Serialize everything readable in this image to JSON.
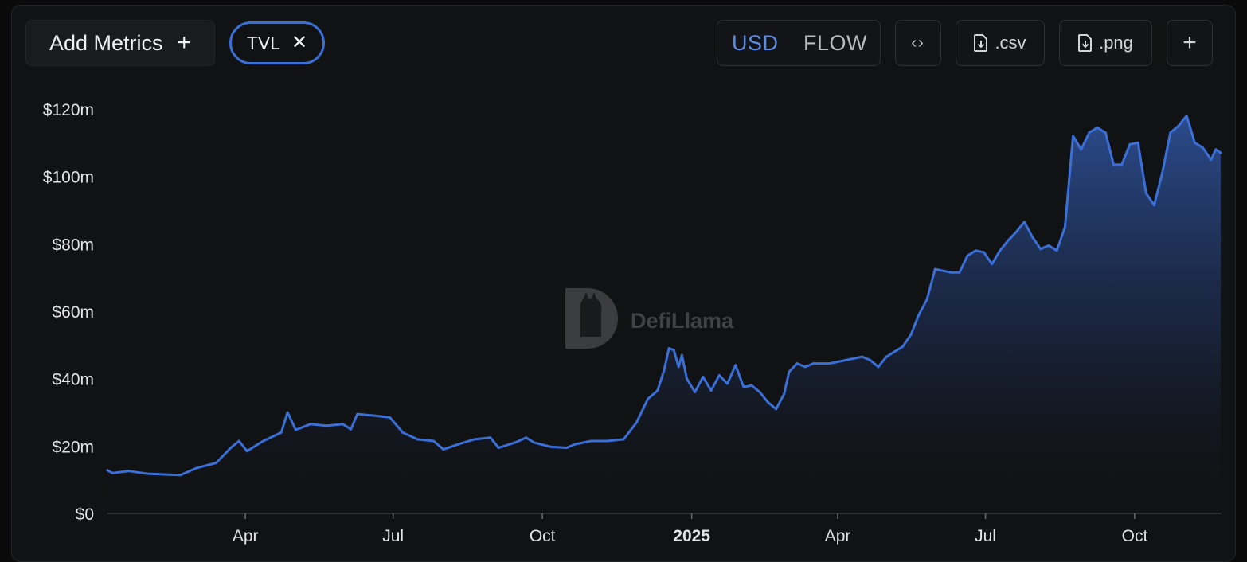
{
  "toolbar": {
    "add_metrics_label": "Add Metrics",
    "add_icon": "plus-icon",
    "tvl_chip_label": "TVL",
    "close_icon": "close-icon",
    "usd_label": "USD",
    "flow_label": "FLOW",
    "embed_icon": "code-brackets-icon",
    "csv_label": ".csv",
    "png_label": ".png",
    "download_icon": "file-download-icon",
    "more_icon": "plus-icon"
  },
  "watermark": {
    "text": "DefiLlama",
    "logo": "llama-logo"
  },
  "colors": {
    "line": "#3b6fd8",
    "accent": "#5b8de8",
    "background": "#111214"
  },
  "chart_data": {
    "type": "area",
    "currency": "USD",
    "y_ticks": [
      "$0",
      "$20m",
      "$40m",
      "$60m",
      "$80m",
      "$100m",
      "$120m"
    ],
    "ylim": [
      0,
      120
    ],
    "y_unit": "$m",
    "xlim": [
      "2024-01-07",
      "2025-11-23"
    ],
    "x_ticks": [
      {
        "label": "Apr",
        "date": "2024-04-01",
        "bold": false
      },
      {
        "label": "Jul",
        "date": "2024-07-01",
        "bold": false
      },
      {
        "label": "Oct",
        "date": "2024-10-01",
        "bold": false
      },
      {
        "label": "2025",
        "date": "2025-01-01",
        "bold": true
      },
      {
        "label": "Apr",
        "date": "2025-04-01",
        "bold": false
      },
      {
        "label": "Jul",
        "date": "2025-07-01",
        "bold": false
      },
      {
        "label": "Oct",
        "date": "2025-10-01",
        "bold": false
      }
    ],
    "series": [
      {
        "name": "TVL",
        "points": [
          [
            "2024-01-07",
            12.8
          ],
          [
            "2024-01-10",
            12.0
          ],
          [
            "2024-01-20",
            12.6
          ],
          [
            "2024-01-31",
            11.8
          ],
          [
            "2024-02-14",
            11.5
          ],
          [
            "2024-02-21",
            11.4
          ],
          [
            "2024-03-02",
            13.5
          ],
          [
            "2024-03-14",
            15.0
          ],
          [
            "2024-03-23",
            19.5
          ],
          [
            "2024-03-28",
            21.5
          ],
          [
            "2024-04-02",
            18.5
          ],
          [
            "2024-04-12",
            21.5
          ],
          [
            "2024-04-23",
            24.0
          ],
          [
            "2024-04-27",
            30.0
          ],
          [
            "2024-05-02",
            24.8
          ],
          [
            "2024-05-11",
            26.5
          ],
          [
            "2024-05-21",
            26.0
          ],
          [
            "2024-05-31",
            26.5
          ],
          [
            "2024-06-05",
            25.0
          ],
          [
            "2024-06-09",
            29.5
          ],
          [
            "2024-06-20",
            29.0
          ],
          [
            "2024-06-29",
            28.5
          ],
          [
            "2024-07-07",
            24.0
          ],
          [
            "2024-07-16",
            22.0
          ],
          [
            "2024-07-26",
            21.5
          ],
          [
            "2024-08-01",
            19.0
          ],
          [
            "2024-08-10",
            20.5
          ],
          [
            "2024-08-20",
            22.0
          ],
          [
            "2024-08-30",
            22.5
          ],
          [
            "2024-09-04",
            19.5
          ],
          [
            "2024-09-14",
            21.0
          ],
          [
            "2024-09-21",
            22.5
          ],
          [
            "2024-09-26",
            21.0
          ],
          [
            "2024-10-06",
            19.8
          ],
          [
            "2024-10-16",
            19.5
          ],
          [
            "2024-10-21",
            20.5
          ],
          [
            "2024-10-31",
            21.5
          ],
          [
            "2024-11-10",
            21.5
          ],
          [
            "2024-11-20",
            22.0
          ],
          [
            "2024-11-28",
            27.0
          ],
          [
            "2024-12-05",
            34.0
          ],
          [
            "2024-12-11",
            36.5
          ],
          [
            "2024-12-15",
            42.5
          ],
          [
            "2024-12-18",
            49.0
          ],
          [
            "2024-12-21",
            48.5
          ],
          [
            "2024-12-24",
            43.5
          ],
          [
            "2024-12-26",
            47.0
          ],
          [
            "2024-12-29",
            40.0
          ],
          [
            "2025-01-03",
            36.0
          ],
          [
            "2025-01-08",
            40.5
          ],
          [
            "2025-01-13",
            36.5
          ],
          [
            "2025-01-18",
            41.0
          ],
          [
            "2025-01-23",
            38.5
          ],
          [
            "2025-01-28",
            44.0
          ],
          [
            "2025-02-02",
            37.5
          ],
          [
            "2025-02-07",
            38.0
          ],
          [
            "2025-02-12",
            36.0
          ],
          [
            "2025-02-17",
            33.0
          ],
          [
            "2025-02-22",
            31.0
          ],
          [
            "2025-02-27",
            35.5
          ],
          [
            "2025-03-02",
            42.0
          ],
          [
            "2025-03-07",
            44.5
          ],
          [
            "2025-03-12",
            43.5
          ],
          [
            "2025-03-17",
            44.5
          ],
          [
            "2025-03-27",
            44.5
          ],
          [
            "2025-04-06",
            45.5
          ],
          [
            "2025-04-16",
            46.5
          ],
          [
            "2025-04-21",
            45.5
          ],
          [
            "2025-04-26",
            43.5
          ],
          [
            "2025-05-01",
            46.5
          ],
          [
            "2025-05-06",
            48.0
          ],
          [
            "2025-05-11",
            49.5
          ],
          [
            "2025-05-16",
            53.0
          ],
          [
            "2025-05-21",
            59.0
          ],
          [
            "2025-05-26",
            63.5
          ],
          [
            "2025-05-31",
            72.5
          ],
          [
            "2025-06-05",
            72.0
          ],
          [
            "2025-06-10",
            71.5
          ],
          [
            "2025-06-15",
            71.5
          ],
          [
            "2025-06-20",
            76.5
          ],
          [
            "2025-06-25",
            78.0
          ],
          [
            "2025-06-30",
            77.5
          ],
          [
            "2025-07-05",
            74.0
          ],
          [
            "2025-07-10",
            78.0
          ],
          [
            "2025-07-15",
            81.0
          ],
          [
            "2025-07-20",
            83.5
          ],
          [
            "2025-07-25",
            86.5
          ],
          [
            "2025-07-30",
            82.0
          ],
          [
            "2025-08-04",
            78.5
          ],
          [
            "2025-08-09",
            79.5
          ],
          [
            "2025-08-14",
            78.0
          ],
          [
            "2025-08-19",
            85.0
          ],
          [
            "2025-08-24",
            112.0
          ],
          [
            "2025-08-29",
            108.0
          ],
          [
            "2025-09-03",
            113.0
          ],
          [
            "2025-09-08",
            114.5
          ],
          [
            "2025-09-13",
            113.0
          ],
          [
            "2025-09-18",
            103.5
          ],
          [
            "2025-09-23",
            103.5
          ],
          [
            "2025-09-28",
            109.5
          ],
          [
            "2025-10-03",
            110.0
          ],
          [
            "2025-10-08",
            95.0
          ],
          [
            "2025-10-13",
            91.5
          ],
          [
            "2025-10-18",
            101.0
          ],
          [
            "2025-10-23",
            113.0
          ],
          [
            "2025-10-28",
            115.0
          ],
          [
            "2025-11-02",
            118.0
          ],
          [
            "2025-11-07",
            110.0
          ],
          [
            "2025-11-12",
            108.5
          ],
          [
            "2025-11-17",
            105.0
          ],
          [
            "2025-11-20",
            108.0
          ],
          [
            "2025-11-23",
            107.0
          ]
        ]
      }
    ]
  }
}
